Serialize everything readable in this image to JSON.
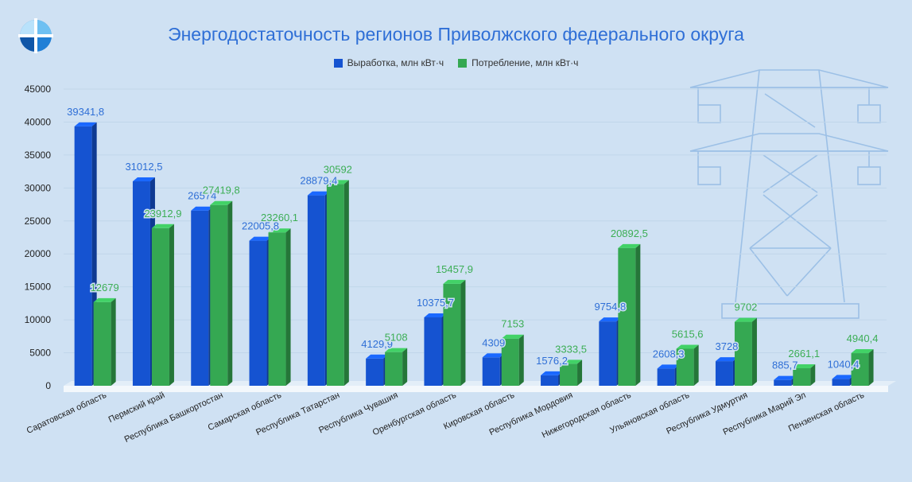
{
  "chart_data": {
    "type": "bar",
    "title": "Энергодостаточность регионов Приволжского федерального округа",
    "categories": [
      "Саратовская область",
      "Пермский край",
      "Республика Башкортостан",
      "Самарская область",
      "Республика Татарстан",
      "Республика Чувашия",
      "Оренбургская область",
      "Кировская область",
      "Республика Мордовия",
      "Нижегородская область",
      "Ульяновская область",
      "Республика Удмуртия",
      "Республика Марий Эл",
      "Пензенская область"
    ],
    "category_labels": [
      "Саратовская область",
      "Пермский край",
      "Республика Башкортостан",
      "Самарская область",
      "Республика Татарстан",
      "Республика Чувашия",
      "Оренбургская область",
      "Кировская область",
      "Республика Мордовия",
      "Нижегородская область",
      "Ульяновская область",
      "Республика Удмуртия",
      "Республика Марий Эл",
      "Пензенская область"
    ],
    "series": [
      {
        "name": "Выработка, млн кВт·ч",
        "color": "#1553d1",
        "values": [
          39341.8,
          31012.5,
          26574,
          22005.8,
          28879.4,
          4129.9,
          10375.7,
          4309,
          1576.2,
          9754.8,
          2608.3,
          3728,
          885.7,
          1040.4
        ],
        "labels": [
          "39341,8",
          "31012,5",
          "26574",
          "22005,8",
          "28879,4",
          "4129,9",
          "10375,7",
          "4309",
          "1576,2",
          "9754,8",
          "2608,3",
          "3728",
          "885,7",
          "1040,4"
        ]
      },
      {
        "name": "Потребление, млн кВт·ч",
        "color": "#35a852",
        "values": [
          12679,
          23912.9,
          27419.8,
          23260.1,
          30592,
          5108,
          15457.9,
          7153,
          3333.5,
          20892.5,
          5615.6,
          9702,
          2661.1,
          4940.4
        ],
        "labels": [
          "12679",
          "23912,9",
          "27419,8",
          "23260,1",
          "30592",
          "5108",
          "15457,9",
          "7153",
          "3333,5",
          "20892,5",
          "5615,6",
          "9702",
          "2661,1",
          "4940,4"
        ]
      }
    ],
    "ylim": [
      0,
      45000
    ],
    "yticks": [
      "45000",
      "40000",
      "35000",
      "30000",
      "25000",
      "20000",
      "15000",
      "10000",
      "5000",
      "0"
    ],
    "ytick_values": [
      45000,
      40000,
      35000,
      30000,
      25000,
      20000,
      15000,
      10000,
      5000,
      0
    ],
    "grid": true,
    "legend_position": "top-center"
  }
}
